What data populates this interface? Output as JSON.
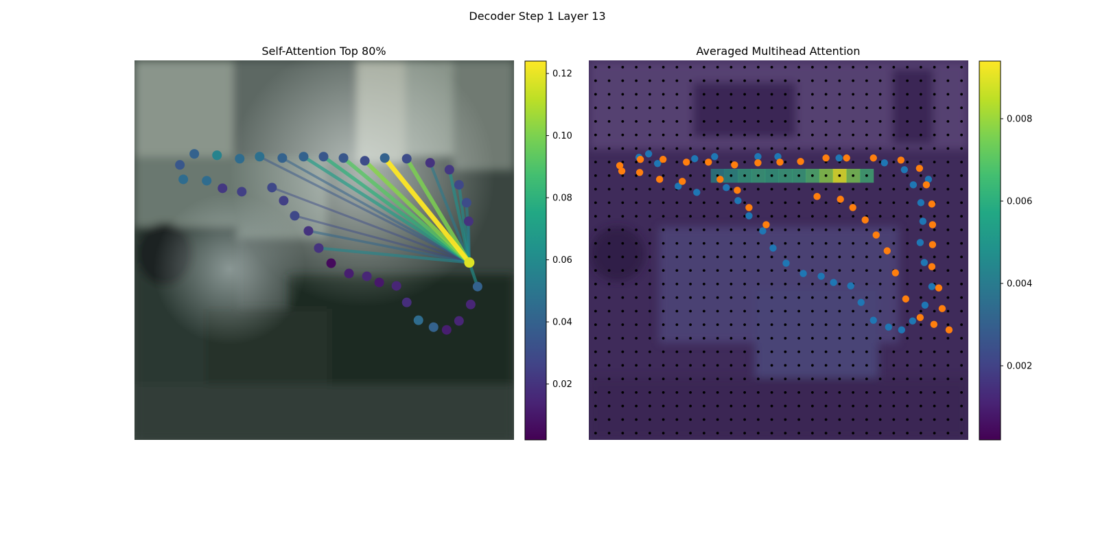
{
  "figure": {
    "suptitle": "Decoder Step 1 Layer 13"
  },
  "chart_data": [
    {
      "type": "scatter",
      "title": "Self-Attention Top 80%",
      "xlabel": "",
      "ylabel": "",
      "image_extent": [
        0,
        552
      ],
      "colorbar": {
        "colormap": "viridis",
        "range": [
          0.002,
          0.124
        ],
        "ticks": [
          0.02,
          0.04,
          0.06,
          0.08,
          0.1,
          0.12
        ],
        "tick_labels": [
          "0.02",
          "0.04",
          "0.06",
          "0.08",
          "0.10",
          "0.12"
        ]
      },
      "query_point": {
        "x": 487,
        "y": 294,
        "value": 0.118
      },
      "points": [
        {
          "x": 66,
          "y": 152,
          "v": 0.035
        },
        {
          "x": 87,
          "y": 136,
          "v": 0.04
        },
        {
          "x": 120,
          "y": 138,
          "v": 0.056
        },
        {
          "x": 153,
          "y": 143,
          "v": 0.045
        },
        {
          "x": 182,
          "y": 140,
          "v": 0.047
        },
        {
          "x": 215,
          "y": 142,
          "v": 0.04
        },
        {
          "x": 246,
          "y": 140,
          "v": 0.04
        },
        {
          "x": 275,
          "y": 140,
          "v": 0.035
        },
        {
          "x": 304,
          "y": 142,
          "v": 0.035
        },
        {
          "x": 335,
          "y": 146,
          "v": 0.03
        },
        {
          "x": 364,
          "y": 142,
          "v": 0.04
        },
        {
          "x": 396,
          "y": 143,
          "v": 0.03
        },
        {
          "x": 430,
          "y": 149,
          "v": 0.02
        },
        {
          "x": 458,
          "y": 159,
          "v": 0.022
        },
        {
          "x": 472,
          "y": 181,
          "v": 0.028
        },
        {
          "x": 483,
          "y": 207,
          "v": 0.03
        },
        {
          "x": 486,
          "y": 234,
          "v": 0.02
        },
        {
          "x": 71,
          "y": 173,
          "v": 0.045
        },
        {
          "x": 105,
          "y": 175,
          "v": 0.045
        },
        {
          "x": 128,
          "y": 186,
          "v": 0.022
        },
        {
          "x": 156,
          "y": 191,
          "v": 0.025
        },
        {
          "x": 200,
          "y": 185,
          "v": 0.028
        },
        {
          "x": 217,
          "y": 204,
          "v": 0.025
        },
        {
          "x": 233,
          "y": 226,
          "v": 0.028
        },
        {
          "x": 253,
          "y": 248,
          "v": 0.02
        },
        {
          "x": 268,
          "y": 273,
          "v": 0.02
        },
        {
          "x": 286,
          "y": 295,
          "v": 0.005
        },
        {
          "x": 312,
          "y": 310,
          "v": 0.012
        },
        {
          "x": 338,
          "y": 314,
          "v": 0.015
        },
        {
          "x": 356,
          "y": 323,
          "v": 0.01
        },
        {
          "x": 381,
          "y": 328,
          "v": 0.015
        },
        {
          "x": 396,
          "y": 352,
          "v": 0.018
        },
        {
          "x": 413,
          "y": 378,
          "v": 0.045
        },
        {
          "x": 435,
          "y": 388,
          "v": 0.04
        },
        {
          "x": 454,
          "y": 392,
          "v": 0.012
        },
        {
          "x": 472,
          "y": 379,
          "v": 0.015
        },
        {
          "x": 489,
          "y": 355,
          "v": 0.015
        },
        {
          "x": 499,
          "y": 329,
          "v": 0.04
        }
      ],
      "edges": [
        {
          "from": [
            364,
            142
          ],
          "w": 0.124
        },
        {
          "from": [
            396,
            143
          ],
          "w": 0.1
        },
        {
          "from": [
            335,
            146
          ],
          "w": 0.102
        },
        {
          "from": [
            304,
            142
          ],
          "w": 0.092
        },
        {
          "from": [
            275,
            140
          ],
          "w": 0.08
        },
        {
          "from": [
            246,
            140
          ],
          "w": 0.07
        },
        {
          "from": [
            430,
            149
          ],
          "w": 0.052
        },
        {
          "from": [
            458,
            159
          ],
          "w": 0.063
        },
        {
          "from": [
            472,
            181
          ],
          "w": 0.06
        },
        {
          "from": [
            483,
            207
          ],
          "w": 0.056
        },
        {
          "from": [
            486,
            234
          ],
          "w": 0.052
        },
        {
          "from": [
            499,
            329
          ],
          "w": 0.062
        },
        {
          "from": [
            215,
            142
          ],
          "w": 0.04
        },
        {
          "from": [
            182,
            140
          ],
          "w": 0.035
        },
        {
          "from": [
            253,
            248
          ],
          "w": 0.042
        },
        {
          "from": [
            268,
            273
          ],
          "w": 0.058
        },
        {
          "from": [
            200,
            185
          ],
          "w": 0.03
        },
        {
          "from": [
            233,
            226
          ],
          "w": 0.03
        }
      ]
    },
    {
      "type": "heatmap",
      "title": "Averaged Multihead Attention",
      "xlabel": "",
      "ylabel": "",
      "grid": {
        "rows": 28,
        "cols": 28
      },
      "colorbar": {
        "colormap": "viridis",
        "range": [
          0.0002,
          0.0094
        ],
        "ticks": [
          0.002,
          0.004,
          0.006,
          0.008
        ],
        "tick_labels": [
          "0.002",
          "0.004",
          "0.006",
          "0.008"
        ]
      },
      "hotspots": [
        {
          "row": 8,
          "col": 18,
          "v": 0.009
        },
        {
          "row": 8,
          "col": 17,
          "v": 0.0078
        },
        {
          "row": 8,
          "col": 19,
          "v": 0.0076
        },
        {
          "row": 8,
          "col": 16,
          "v": 0.0068
        },
        {
          "row": 8,
          "col": 20,
          "v": 0.0065
        },
        {
          "row": 8,
          "col": 15,
          "v": 0.0062
        },
        {
          "row": 8,
          "col": 14,
          "v": 0.0062
        },
        {
          "row": 8,
          "col": 13,
          "v": 0.006
        },
        {
          "row": 8,
          "col": 12,
          "v": 0.0062
        },
        {
          "row": 8,
          "col": 11,
          "v": 0.006
        },
        {
          "row": 8,
          "col": 10,
          "v": 0.0055
        },
        {
          "row": 8,
          "col": 9,
          "v": 0.005
        }
      ],
      "series": [
        {
          "name": "",
          "color": "#1f77b4",
          "points": [
            {
              "x": 73,
              "y": 141
            },
            {
              "x": 87,
              "y": 136
            },
            {
              "x": 100,
              "y": 150
            },
            {
              "x": 130,
              "y": 183
            },
            {
              "x": 154,
              "y": 143
            },
            {
              "x": 157,
              "y": 192
            },
            {
              "x": 183,
              "y": 140
            },
            {
              "x": 200,
              "y": 185
            },
            {
              "x": 217,
              "y": 204
            },
            {
              "x": 233,
              "y": 226
            },
            {
              "x": 246,
              "y": 140
            },
            {
              "x": 253,
              "y": 248
            },
            {
              "x": 268,
              "y": 273
            },
            {
              "x": 275,
              "y": 140
            },
            {
              "x": 287,
              "y": 295
            },
            {
              "x": 312,
              "y": 310
            },
            {
              "x": 338,
              "y": 314
            },
            {
              "x": 356,
              "y": 323
            },
            {
              "x": 364,
              "y": 142
            },
            {
              "x": 381,
              "y": 328
            },
            {
              "x": 396,
              "y": 352
            },
            {
              "x": 414,
              "y": 378
            },
            {
              "x": 430,
              "y": 149
            },
            {
              "x": 436,
              "y": 388
            },
            {
              "x": 455,
              "y": 392
            },
            {
              "x": 459,
              "y": 159
            },
            {
              "x": 471,
              "y": 379
            },
            {
              "x": 472,
              "y": 181
            },
            {
              "x": 483,
              "y": 207
            },
            {
              "x": 486,
              "y": 234
            },
            {
              "x": 482,
              "y": 265
            },
            {
              "x": 489,
              "y": 356
            },
            {
              "x": 499,
              "y": 329
            },
            {
              "x": 488,
              "y": 294
            },
            {
              "x": 494,
              "y": 173
            }
          ]
        },
        {
          "name": "",
          "color": "#ff7f0e",
          "points": [
            {
              "x": 45,
              "y": 153
            },
            {
              "x": 48,
              "y": 161
            },
            {
              "x": 75,
              "y": 144
            },
            {
              "x": 74,
              "y": 163
            },
            {
              "x": 103,
              "y": 173
            },
            {
              "x": 108,
              "y": 144
            },
            {
              "x": 136,
              "y": 176
            },
            {
              "x": 142,
              "y": 148
            },
            {
              "x": 174,
              "y": 148
            },
            {
              "x": 191,
              "y": 173
            },
            {
              "x": 212,
              "y": 152
            },
            {
              "x": 216,
              "y": 189
            },
            {
              "x": 233,
              "y": 214
            },
            {
              "x": 246,
              "y": 149
            },
            {
              "x": 258,
              "y": 239
            },
            {
              "x": 278,
              "y": 148
            },
            {
              "x": 308,
              "y": 147
            },
            {
              "x": 332,
              "y": 198
            },
            {
              "x": 345,
              "y": 142
            },
            {
              "x": 366,
              "y": 202
            },
            {
              "x": 375,
              "y": 142
            },
            {
              "x": 384,
              "y": 214
            },
            {
              "x": 402,
              "y": 232
            },
            {
              "x": 414,
              "y": 142
            },
            {
              "x": 418,
              "y": 254
            },
            {
              "x": 434,
              "y": 277
            },
            {
              "x": 446,
              "y": 309
            },
            {
              "x": 454,
              "y": 145
            },
            {
              "x": 461,
              "y": 347
            },
            {
              "x": 481,
              "y": 157
            },
            {
              "x": 482,
              "y": 374
            },
            {
              "x": 491,
              "y": 181
            },
            {
              "x": 499,
              "y": 209
            },
            {
              "x": 500,
              "y": 239
            },
            {
              "x": 500,
              "y": 268
            },
            {
              "x": 499,
              "y": 300
            },
            {
              "x": 509,
              "y": 331
            },
            {
              "x": 514,
              "y": 361
            },
            {
              "x": 502,
              "y": 384
            },
            {
              "x": 524,
              "y": 392
            }
          ]
        }
      ]
    }
  ]
}
